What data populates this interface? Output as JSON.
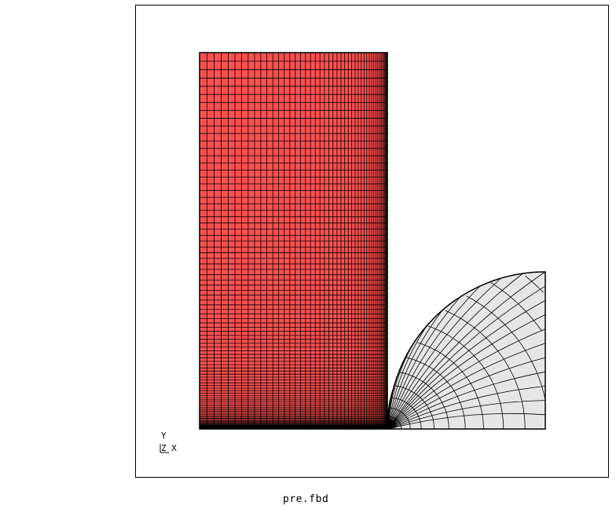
{
  "status": {
    "filename": "pre.fbd"
  },
  "axes_triad": {
    "y_label": "Y",
    "zx_label": "Z X"
  },
  "colors": {
    "background": "#ffffff",
    "frame": "#000000",
    "block_fill": "#ff5050",
    "block_mesh": "#000000",
    "quarter_disk_fill": "#e6e6e6",
    "quarter_disk_mesh": "#000000"
  },
  "mesh": {
    "block_columns": 48,
    "block_rows": 96,
    "quarter_disk_radial_rings": 14,
    "quarter_disk_arc_lines": 22
  }
}
